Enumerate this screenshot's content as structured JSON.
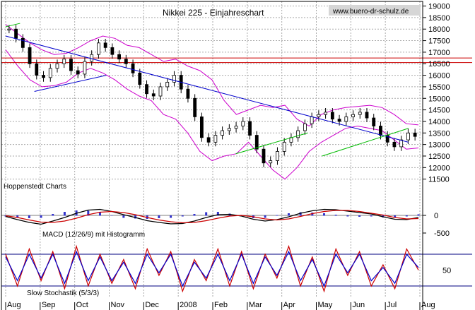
{
  "chart_data": {
    "type": "candlestick",
    "title": "Nikkei 225 - Einjahreschart",
    "watermark": "www.buero-dr-schulz.de",
    "source_label": "Hoppenstedt Charts",
    "x_labels": [
      "Aug",
      "Sep",
      "Oct",
      "Nov",
      "Dec",
      "2008",
      "Feb",
      "Mar",
      "Apr",
      "May",
      "Jun",
      "Jul",
      "Aug"
    ],
    "price_axis": {
      "ticks": [
        "19000",
        "18500",
        "18000",
        "17500",
        "17000",
        "16500",
        "16000",
        "15500",
        "15000",
        "14500",
        "14000",
        "13500",
        "13000",
        "12500",
        "12000",
        "11500"
      ],
      "ylim": [
        11000,
        19200
      ]
    },
    "horizontal_levels": [
      16750,
      16550
    ],
    "close_series": [
      18000,
      17600,
      17200,
      16500,
      16000,
      15900,
      16300,
      16500,
      16700,
      16200,
      16050,
      16600,
      16900,
      17400,
      17200,
      16900,
      16700,
      16500,
      16100,
      15600,
      15200,
      15100,
      15500,
      15700,
      16000,
      15400,
      15000,
      14200,
      13300,
      13100,
      13400,
      13600,
      13700,
      13800,
      14000,
      13400,
      12800,
      12200,
      12300,
      12700,
      13100,
      13300,
      13600,
      13900,
      14200,
      14300,
      14400,
      14100,
      14000,
      14200,
      14300,
      14400,
      14150,
      13800,
      13400,
      13100,
      12900,
      13200,
      13500,
      13350
    ],
    "upper_band": [
      18200,
      17800,
      17400,
      17100,
      16900,
      16950,
      17200,
      17500,
      17700,
      17600,
      17300,
      17200,
      16900,
      16600,
      16700,
      16400,
      16200,
      15800,
      14900,
      14300,
      14500,
      14700,
      14600,
      14700,
      14100,
      13800,
      14300,
      14500,
      14600,
      14650,
      14700,
      14600,
      14300,
      13900,
      13850
    ],
    "lower_band": [
      17100,
      16400,
      15800,
      15500,
      15550,
      15700,
      16100,
      16300,
      16100,
      15800,
      15400,
      15100,
      14900,
      14300,
      14100,
      13500,
      12700,
      12300,
      12500,
      12600,
      13100,
      12500,
      11900,
      11500,
      12000,
      12700,
      13100,
      13400,
      13700,
      13800,
      13700,
      13600,
      13200,
      12800,
      12850
    ],
    "trendlines": [
      {
        "name": "blue",
        "color": "#0000cc",
        "from": [
          0,
          17700
        ],
        "to": [
          28,
          13100
        ]
      },
      {
        "name": "blue-support",
        "color": "#0000cc",
        "from": [
          2,
          15300
        ],
        "to": [
          7,
          16000
        ]
      },
      {
        "name": "green",
        "color": "#00bb00",
        "from": [
          0,
          18100
        ],
        "to": [
          1,
          18250
        ]
      },
      {
        "name": "green-low",
        "color": "#00bb00",
        "from": [
          16,
          12600
        ],
        "to": [
          21,
          13500
        ]
      },
      {
        "name": "green-apr",
        "color": "#00bb00",
        "from": [
          22,
          12500
        ],
        "to": [
          28,
          13700
        ]
      }
    ],
    "macd": {
      "label": "MACD (12/26/9) mit Histogramm",
      "ticks": [
        "0",
        "-500"
      ],
      "ylim": [
        -700,
        300
      ],
      "macd": [
        -30,
        -120,
        -200,
        -250,
        -160,
        -60,
        60,
        150,
        170,
        110,
        20,
        -60,
        -150,
        -200,
        -240,
        -230,
        -160,
        -60,
        20,
        30,
        -20,
        -110,
        -160,
        -120,
        -40,
        60,
        130,
        170,
        160,
        120,
        80,
        40,
        -40,
        -110,
        -120,
        -60
      ],
      "signal": [
        -10,
        -60,
        -130,
        -190,
        -200,
        -160,
        -80,
        20,
        90,
        110,
        80,
        20,
        -60,
        -130,
        -180,
        -210,
        -200,
        -150,
        -80,
        -20,
        0,
        -40,
        -100,
        -130,
        -100,
        -30,
        50,
        110,
        140,
        140,
        110,
        60,
        10,
        -60,
        -100,
        -90
      ]
    },
    "stochastic": {
      "label": "Slow Stochastik (5/3/3)",
      "ticks": [
        "50"
      ],
      "ylim": [
        0,
        100
      ],
      "upper_line": 80,
      "lower_line": 20,
      "k": [
        80,
        20,
        90,
        30,
        85,
        15,
        95,
        20,
        80,
        25,
        70,
        15,
        90,
        40,
        85,
        10,
        70,
        30,
        90,
        20,
        85,
        15,
        80,
        35,
        95,
        20,
        75,
        10,
        90,
        40,
        85,
        20,
        60,
        15,
        90,
        50
      ],
      "d": [
        75,
        30,
        80,
        35,
        80,
        25,
        85,
        30,
        75,
        30,
        65,
        25,
        80,
        45,
        80,
        20,
        65,
        35,
        80,
        30,
        80,
        25,
        75,
        40,
        85,
        30,
        70,
        20,
        80,
        45,
        80,
        30,
        55,
        25,
        80,
        55
      ]
    }
  }
}
